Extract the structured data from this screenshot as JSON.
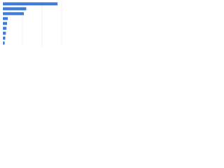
{
  "chart_data": {
    "type": "bar",
    "orientation": "horizontal",
    "values": [
      89,
      38,
      34,
      8,
      7,
      6,
      5,
      4,
      3
    ],
    "color": "#3a78d6",
    "xlim": [
      0,
      100
    ]
  }
}
